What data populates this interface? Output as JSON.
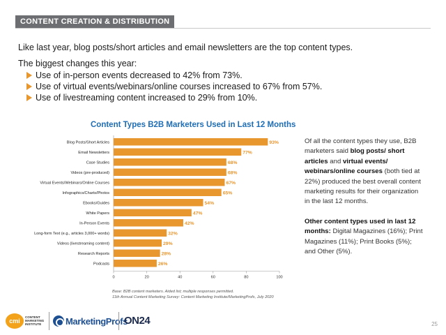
{
  "header": {
    "label": "CONTENT CREATION & DISTRIBUTION"
  },
  "intro": "Like last year, blog posts/short articles and email newsletters are the top content types.",
  "changes": {
    "title": "The biggest changes this year:",
    "items": [
      "Use of in-person events decreased to 42% from 73%.",
      "Use of virtual events/webinars/online courses increased to 67% from 57%.",
      "Use of livestreaming content increased to 29% from 10%."
    ]
  },
  "chart_data": {
    "type": "bar",
    "orientation": "horizontal",
    "title": "Content Types B2B Marketers Used in Last 12 Months",
    "categories": [
      "Blog Posts/Short Articles",
      "Email Newsletters",
      "Case Studies",
      "Videos (pre-produced)",
      "Virtual Events/Webinars/Online Courses",
      "Infographics/Charts/Photos",
      "Ebooks/Guides",
      "White Papers",
      "In-Person Events",
      "Long-form Text (e.g., articles 3,000+ words)",
      "Videos (livestreaming content)",
      "Research Reports",
      "Podcasts"
    ],
    "values": [
      93,
      77,
      68,
      68,
      67,
      65,
      54,
      47,
      42,
      32,
      29,
      28,
      26
    ],
    "value_labels": [
      "93%",
      "77%",
      "68%",
      "68%",
      "67%",
      "65%",
      "54%",
      "47%",
      "42%",
      "32%",
      "29%",
      "28%",
      "26%"
    ],
    "xlim": [
      0,
      100
    ],
    "xticks": [
      0,
      20,
      40,
      60,
      80,
      100
    ],
    "xtick_labels": [
      "0",
      "20",
      "40",
      "60",
      "80",
      "100"
    ],
    "bar_color": "#e8962e",
    "label_color": "#e8962e",
    "grid": false,
    "legend": false,
    "source": [
      "Base: B2B content marketers. Aided list; multiple responses permitted.",
      "11th Annual Content Marketing Survey: Content Marketing Institute/MarketingProfs, July 2020"
    ]
  },
  "sidebar": {
    "p1": {
      "t1": "Of all the content types they use, B2B marketers said ",
      "b1": "blog posts/ short articles",
      "t2": " and ",
      "b2": "virtual events/ webinars/online courses",
      "t3": " (both tied at 22%) produced the best overall content marketing results for their organization in the last 12 months."
    },
    "p2": {
      "b1": "Other content types used in last 12 months:",
      "t1": " Digital Magazines (16%); Print Magazines (11%); Print Books (5%); and Other (5%)."
    }
  },
  "footer": {
    "cmi_mark": "cmi",
    "cmi_text": "CONTENT MARKETING INSTITUTE",
    "marketingprofs": "MarketingProfs",
    "on24": "ON24",
    "page_number": "25"
  },
  "colors": {
    "accent": "#e8962e",
    "title_blue": "#1e6db5",
    "header_gray": "#6d6e71"
  },
  "icons": {
    "bullet": "triangle-right-icon"
  }
}
